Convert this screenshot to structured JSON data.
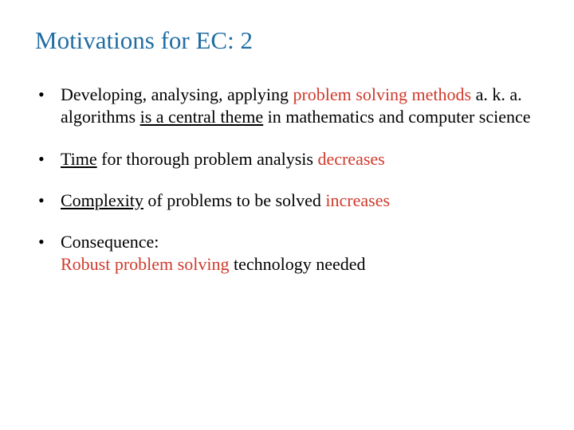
{
  "colors": {
    "title": "#1f6da3",
    "body": "#000000",
    "highlight": "#d03a2c",
    "background": "#ffffff"
  },
  "typography": {
    "title_fontsize": 31,
    "body_fontsize": 22,
    "font_family": "Georgia, serif"
  },
  "title": "Motivations for EC: 2",
  "bullets": [
    {
      "segments": [
        {
          "text": "Developing, analysing, applying "
        },
        {
          "text": "problem solving methods",
          "highlight": true
        },
        {
          "text": " a. k. a. algorithms "
        },
        {
          "text": "is a central theme",
          "underline": true
        },
        {
          "text": " in mathematics and computer science"
        }
      ]
    },
    {
      "segments": [
        {
          "text": "Time",
          "underline": true
        },
        {
          "text": " for thorough problem analysis "
        },
        {
          "text": "decreases",
          "highlight": true
        }
      ]
    },
    {
      "segments": [
        {
          "text": "Complexity",
          "underline": true
        },
        {
          "text": " of problems to be solved "
        },
        {
          "text": "increases",
          "highlight": true
        }
      ]
    },
    {
      "segments": [
        {
          "text": "Consequence:"
        },
        {
          "break": true
        },
        {
          "text": "Robust problem solving",
          "highlight": true
        },
        {
          "text": " technology needed"
        }
      ]
    }
  ]
}
